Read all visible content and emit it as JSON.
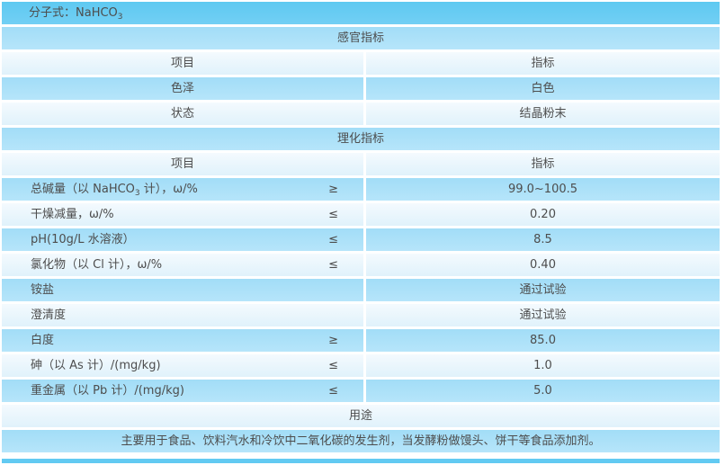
{
  "colors": {
    "row_dark": "#68ccf3",
    "row_medium": "#a9dff8",
    "row_light": "#eaf6fd",
    "bottom_bar": "#62caf2",
    "text": "#4d4d4d",
    "gap": "#ffffff"
  },
  "molecular": {
    "pre": "分子式：NaHCO",
    "sub": "3"
  },
  "sections": {
    "sensory": "感官指标",
    "physchem": "理化指标",
    "usage": "用途"
  },
  "headers": {
    "item": "项目",
    "spec": "指标"
  },
  "sensory_rows": {
    "color": {
      "label": "色泽",
      "value": "白色"
    },
    "state": {
      "label": "状态",
      "value": "结晶粉末"
    }
  },
  "physchem_rows": {
    "alkali": {
      "pre": "总碱量（以 NaHCO",
      "sub": "3",
      "post": " 计），ω/%",
      "symbol": "≥",
      "value": "99.0~100.5"
    },
    "drying": {
      "label": "干燥减量，ω/%",
      "symbol": "≤",
      "value": "0.20"
    },
    "ph": {
      "label": "pH(10g/L 水溶液）",
      "symbol": "≤",
      "value": "8.5"
    },
    "chloride": {
      "label": "氯化物（以 Cl 计），ω/%",
      "symbol": "≤",
      "value": "0.40"
    },
    "ammonium": {
      "label": "铵盐",
      "symbol": "",
      "value": "通过试验"
    },
    "clarity": {
      "label": "澄清度",
      "symbol": "",
      "value": "通过试验"
    },
    "whiteness": {
      "label": "白度",
      "symbol": "≥",
      "value": "85.0"
    },
    "arsenic": {
      "label": "砷（以 As 计）/(mg/kg)",
      "symbol": "≤",
      "value": "1.0"
    },
    "heavy_metal": {
      "label": "重金属（以 Pb 计）/(mg/kg)",
      "symbol": "≤",
      "value": "5.0"
    }
  },
  "usage_text": "主要用于食品、饮料汽水和冷饮中二氧化碳的发生剂，当发酵粉做馒头、饼干等食品添加剂。"
}
